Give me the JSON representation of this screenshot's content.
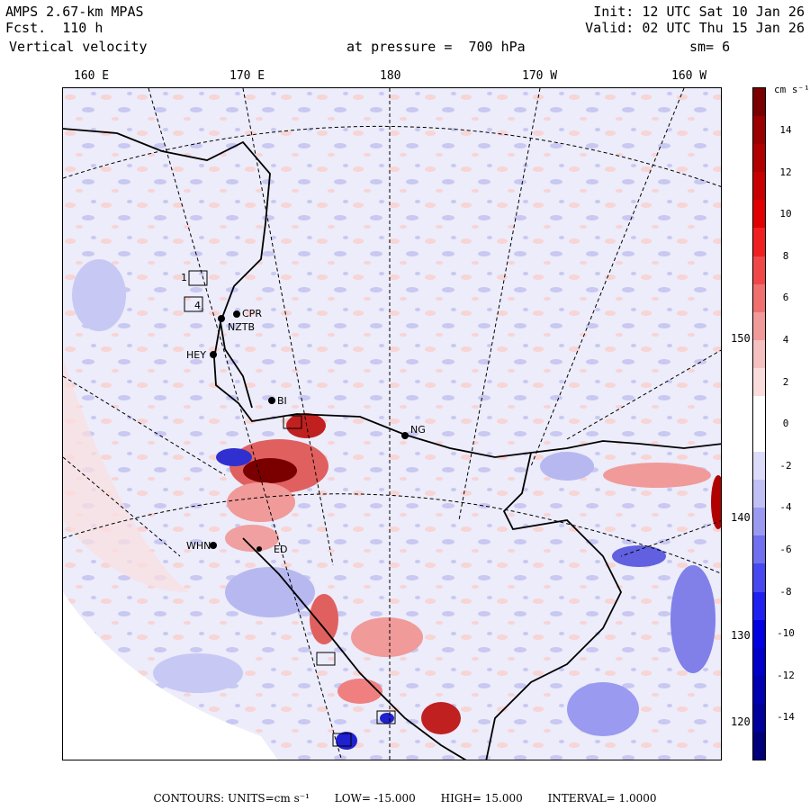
{
  "header": {
    "model": "AMPS 2.67-km MPAS",
    "forecast": "Fcst.  110 h",
    "field": "Vertical velocity",
    "init": "Init: 12 UTC Sat 10 Jan 26",
    "valid": "Valid: 02 UTC Thu 15 Jan 26",
    "level": "at pressure =  700 hPa",
    "smoothing": "sm= 6"
  },
  "longitude_labels": [
    "160 E",
    "170 E",
    "180",
    "170 W",
    "160 W"
  ],
  "latitude_labels": [
    "150 W",
    "140 W",
    "130 W",
    "120 W"
  ],
  "colorbar": {
    "unit": "cm s⁻¹",
    "ticks": [
      "14",
      "12",
      "10",
      "8",
      "6",
      "4",
      "2",
      "0",
      "-2",
      "-4",
      "-6",
      "-8",
      "-10",
      "-12",
      "-14"
    ],
    "colors": [
      "#7a0000",
      "#9a0000",
      "#b00000",
      "#c80000",
      "#e00000",
      "#f02020",
      "#f04848",
      "#f07070",
      "#f09a9a",
      "#f5c0c0",
      "#fadcdc",
      "#ffffff",
      "#ffffff",
      "#dcdcfa",
      "#c0c0f5",
      "#9a9af0",
      "#7070f0",
      "#4848f0",
      "#2020f0",
      "#0000e0",
      "#0000c8",
      "#0000b0",
      "#00009a",
      "#00007a"
    ]
  },
  "stations": [
    {
      "id": "cpr",
      "label": "CPR"
    },
    {
      "id": "nztb",
      "label": "NZTB"
    },
    {
      "id": "hey",
      "label": "HEY"
    },
    {
      "id": "bi",
      "label": "BI"
    },
    {
      "id": "ng",
      "label": "NG"
    },
    {
      "id": "whn",
      "label": "WHN"
    },
    {
      "id": "ed",
      "label": "ED"
    },
    {
      "id": "box1",
      "label": "1"
    },
    {
      "id": "box4",
      "label": "4"
    }
  ],
  "footer": {
    "contours": "CONTOURS:  UNITS=cm s⁻¹",
    "low": "LOW=  -15.000",
    "high": "HIGH=  15.000",
    "interval": "INTERVAL=   1.0000"
  }
}
